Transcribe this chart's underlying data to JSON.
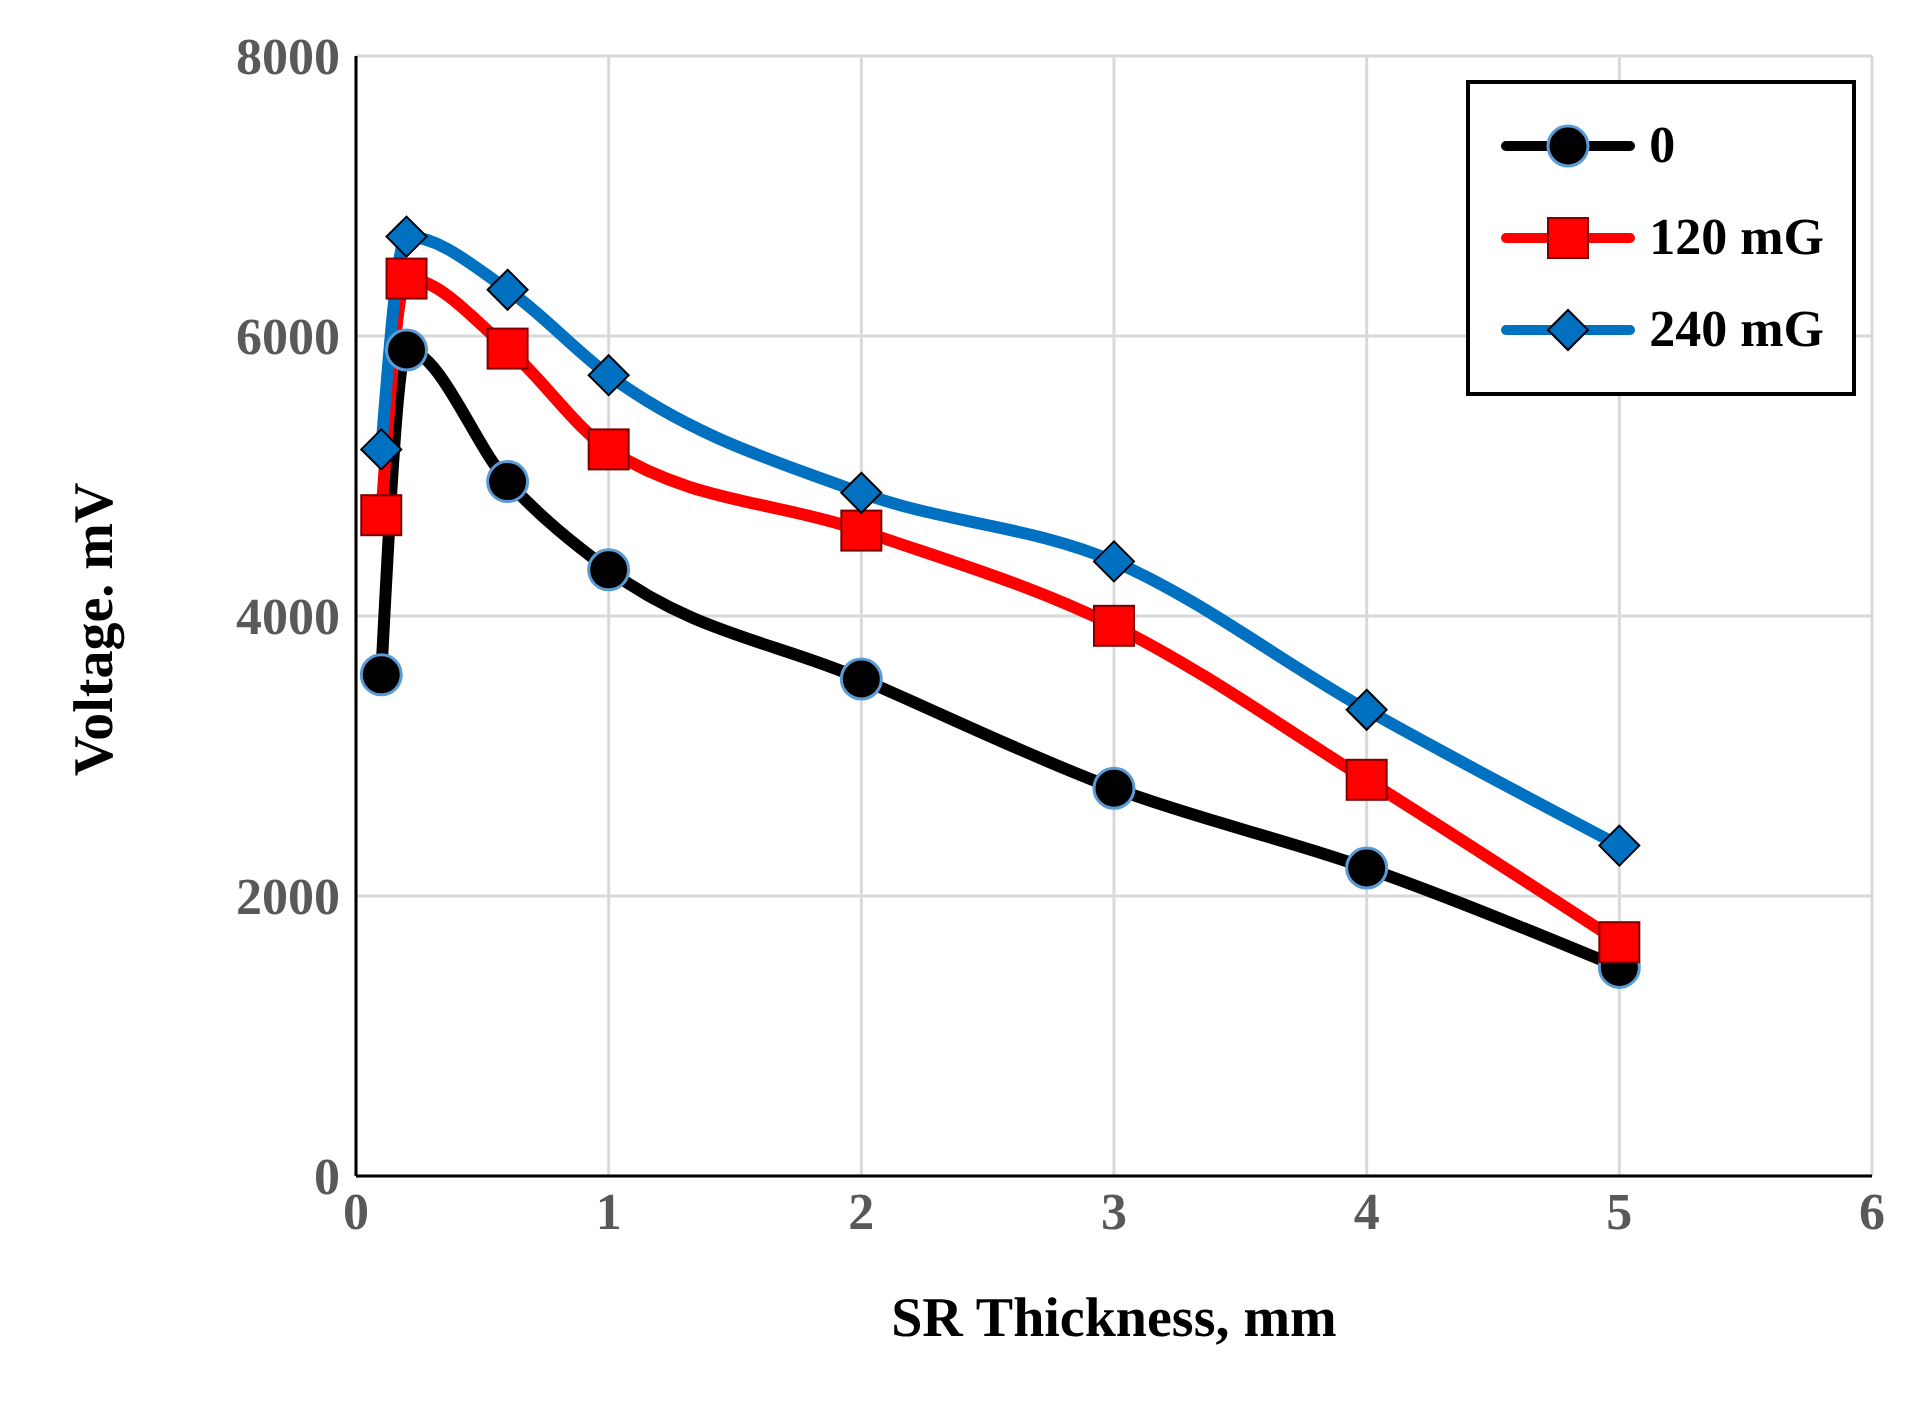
{
  "chart_data": {
    "type": "line",
    "xlabel": "SR Thickness, mm",
    "ylabel": "Voltage. mV",
    "x": [
      0.1,
      0.2,
      0.6,
      1,
      2,
      3,
      4,
      5
    ],
    "series": [
      {
        "name": "0",
        "color": "#000000",
        "marker": "circle",
        "values": [
          3580,
          5900,
          4960,
          4330,
          3550,
          2770,
          2200,
          1490
        ]
      },
      {
        "name": "120 mG",
        "color": "#ff0000",
        "marker": "square",
        "values": [
          4720,
          6410,
          5910,
          5190,
          4610,
          3930,
          2830,
          1670
        ]
      },
      {
        "name": "240 mG",
        "color": "#0070c0",
        "marker": "diamond",
        "values": [
          5190,
          6710,
          6330,
          5720,
          4880,
          4390,
          3330,
          2360
        ]
      }
    ],
    "xlim": [
      0,
      6
    ],
    "xticks": [
      0,
      1,
      2,
      3,
      4,
      5,
      6
    ],
    "ylim": [
      0,
      8000
    ],
    "yticks": [
      0,
      2000,
      4000,
      6000,
      8000
    ],
    "grid": true,
    "legend": "top right"
  }
}
